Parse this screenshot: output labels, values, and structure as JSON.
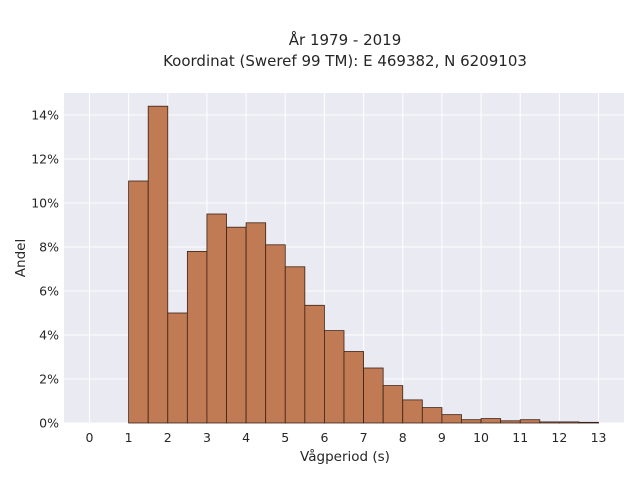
{
  "chart_data": {
    "type": "bar",
    "title_line1": "År 1979 - 2019",
    "title_line2": "Koordinat (Sweref 99 TM): E 469382, N 6209103",
    "xlabel": "Vågperiod (s)",
    "ylabel": "Andel",
    "bin_width": 0.5,
    "x_ticks": [
      "0",
      "1",
      "2",
      "3",
      "4",
      "5",
      "6",
      "7",
      "8",
      "9",
      "10",
      "11",
      "12",
      "13"
    ],
    "y_ticks": [
      "0%",
      "2%",
      "4%",
      "6%",
      "8%",
      "10%",
      "12%",
      "14%"
    ],
    "xlim": [
      -0.65,
      13.65
    ],
    "ylim": [
      0,
      15
    ],
    "grid": true,
    "bins": [
      {
        "x0": 1.0,
        "value": 11.0
      },
      {
        "x0": 1.5,
        "value": 14.4
      },
      {
        "x0": 2.0,
        "value": 5.0
      },
      {
        "x0": 2.5,
        "value": 7.8
      },
      {
        "x0": 3.0,
        "value": 9.5
      },
      {
        "x0": 3.5,
        "value": 8.9
      },
      {
        "x0": 4.0,
        "value": 9.1
      },
      {
        "x0": 4.5,
        "value": 8.1
      },
      {
        "x0": 5.0,
        "value": 7.1
      },
      {
        "x0": 5.5,
        "value": 5.35
      },
      {
        "x0": 6.0,
        "value": 4.2
      },
      {
        "x0": 6.5,
        "value": 3.25
      },
      {
        "x0": 7.0,
        "value": 2.5
      },
      {
        "x0": 7.5,
        "value": 1.7
      },
      {
        "x0": 8.0,
        "value": 1.05
      },
      {
        "x0": 8.5,
        "value": 0.7
      },
      {
        "x0": 9.0,
        "value": 0.38
      },
      {
        "x0": 9.5,
        "value": 0.15
      },
      {
        "x0": 10.0,
        "value": 0.2
      },
      {
        "x0": 10.5,
        "value": 0.1
      },
      {
        "x0": 11.0,
        "value": 0.15
      },
      {
        "x0": 11.5,
        "value": 0.05
      },
      {
        "x0": 12.0,
        "value": 0.05
      },
      {
        "x0": 12.5,
        "value": 0.03
      }
    ],
    "colors": {
      "bar_fill": "#c07a54",
      "bar_edge": "#3c2214",
      "plot_background": "#eaeaf2",
      "grid": "#ffffff"
    }
  }
}
